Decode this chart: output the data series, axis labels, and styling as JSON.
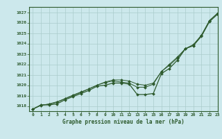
{
  "title": "Graphe pression niveau de la mer (hPa)",
  "bg_color": "#cce8ec",
  "grid_color": "#aacccc",
  "line_color": "#2d5a2d",
  "xlim": [
    -0.5,
    23
  ],
  "ylim": [
    1017.5,
    1027.5
  ],
  "yticks": [
    1018,
    1019,
    1020,
    1021,
    1022,
    1023,
    1024,
    1025,
    1026,
    1027
  ],
  "xticks": [
    0,
    1,
    2,
    3,
    4,
    5,
    6,
    7,
    8,
    9,
    10,
    11,
    12,
    13,
    14,
    15,
    16,
    17,
    18,
    19,
    20,
    21,
    22,
    23
  ],
  "series_main": [
    1017.7,
    1018.1,
    1018.1,
    1018.2,
    1018.6,
    1018.9,
    1019.2,
    1019.5,
    1019.9,
    1020.0,
    1020.2,
    1020.2,
    1020.1,
    1019.1,
    1019.1,
    1019.2,
    1021.1,
    1021.6,
    1022.4,
    1023.5,
    1023.8,
    1024.7,
    1026.1,
    1026.8
  ],
  "series_smooth": [
    1017.7,
    1018.05,
    1018.2,
    1018.4,
    1018.7,
    1019.0,
    1019.3,
    1019.65,
    1020.0,
    1020.25,
    1020.4,
    1020.3,
    1020.2,
    1019.8,
    1019.8,
    1020.1,
    1021.3,
    1021.9,
    1022.6,
    1023.5,
    1023.9,
    1024.8,
    1026.2,
    1026.9
  ],
  "series_linear": [
    1017.7,
    1018.1,
    1018.15,
    1018.35,
    1018.7,
    1019.05,
    1019.35,
    1019.65,
    1020.0,
    1020.3,
    1020.5,
    1020.5,
    1020.4,
    1020.1,
    1020.0,
    1020.2,
    1021.3,
    1022.0,
    1022.7,
    1023.5,
    1023.8,
    1024.8,
    1026.2,
    1026.9
  ]
}
